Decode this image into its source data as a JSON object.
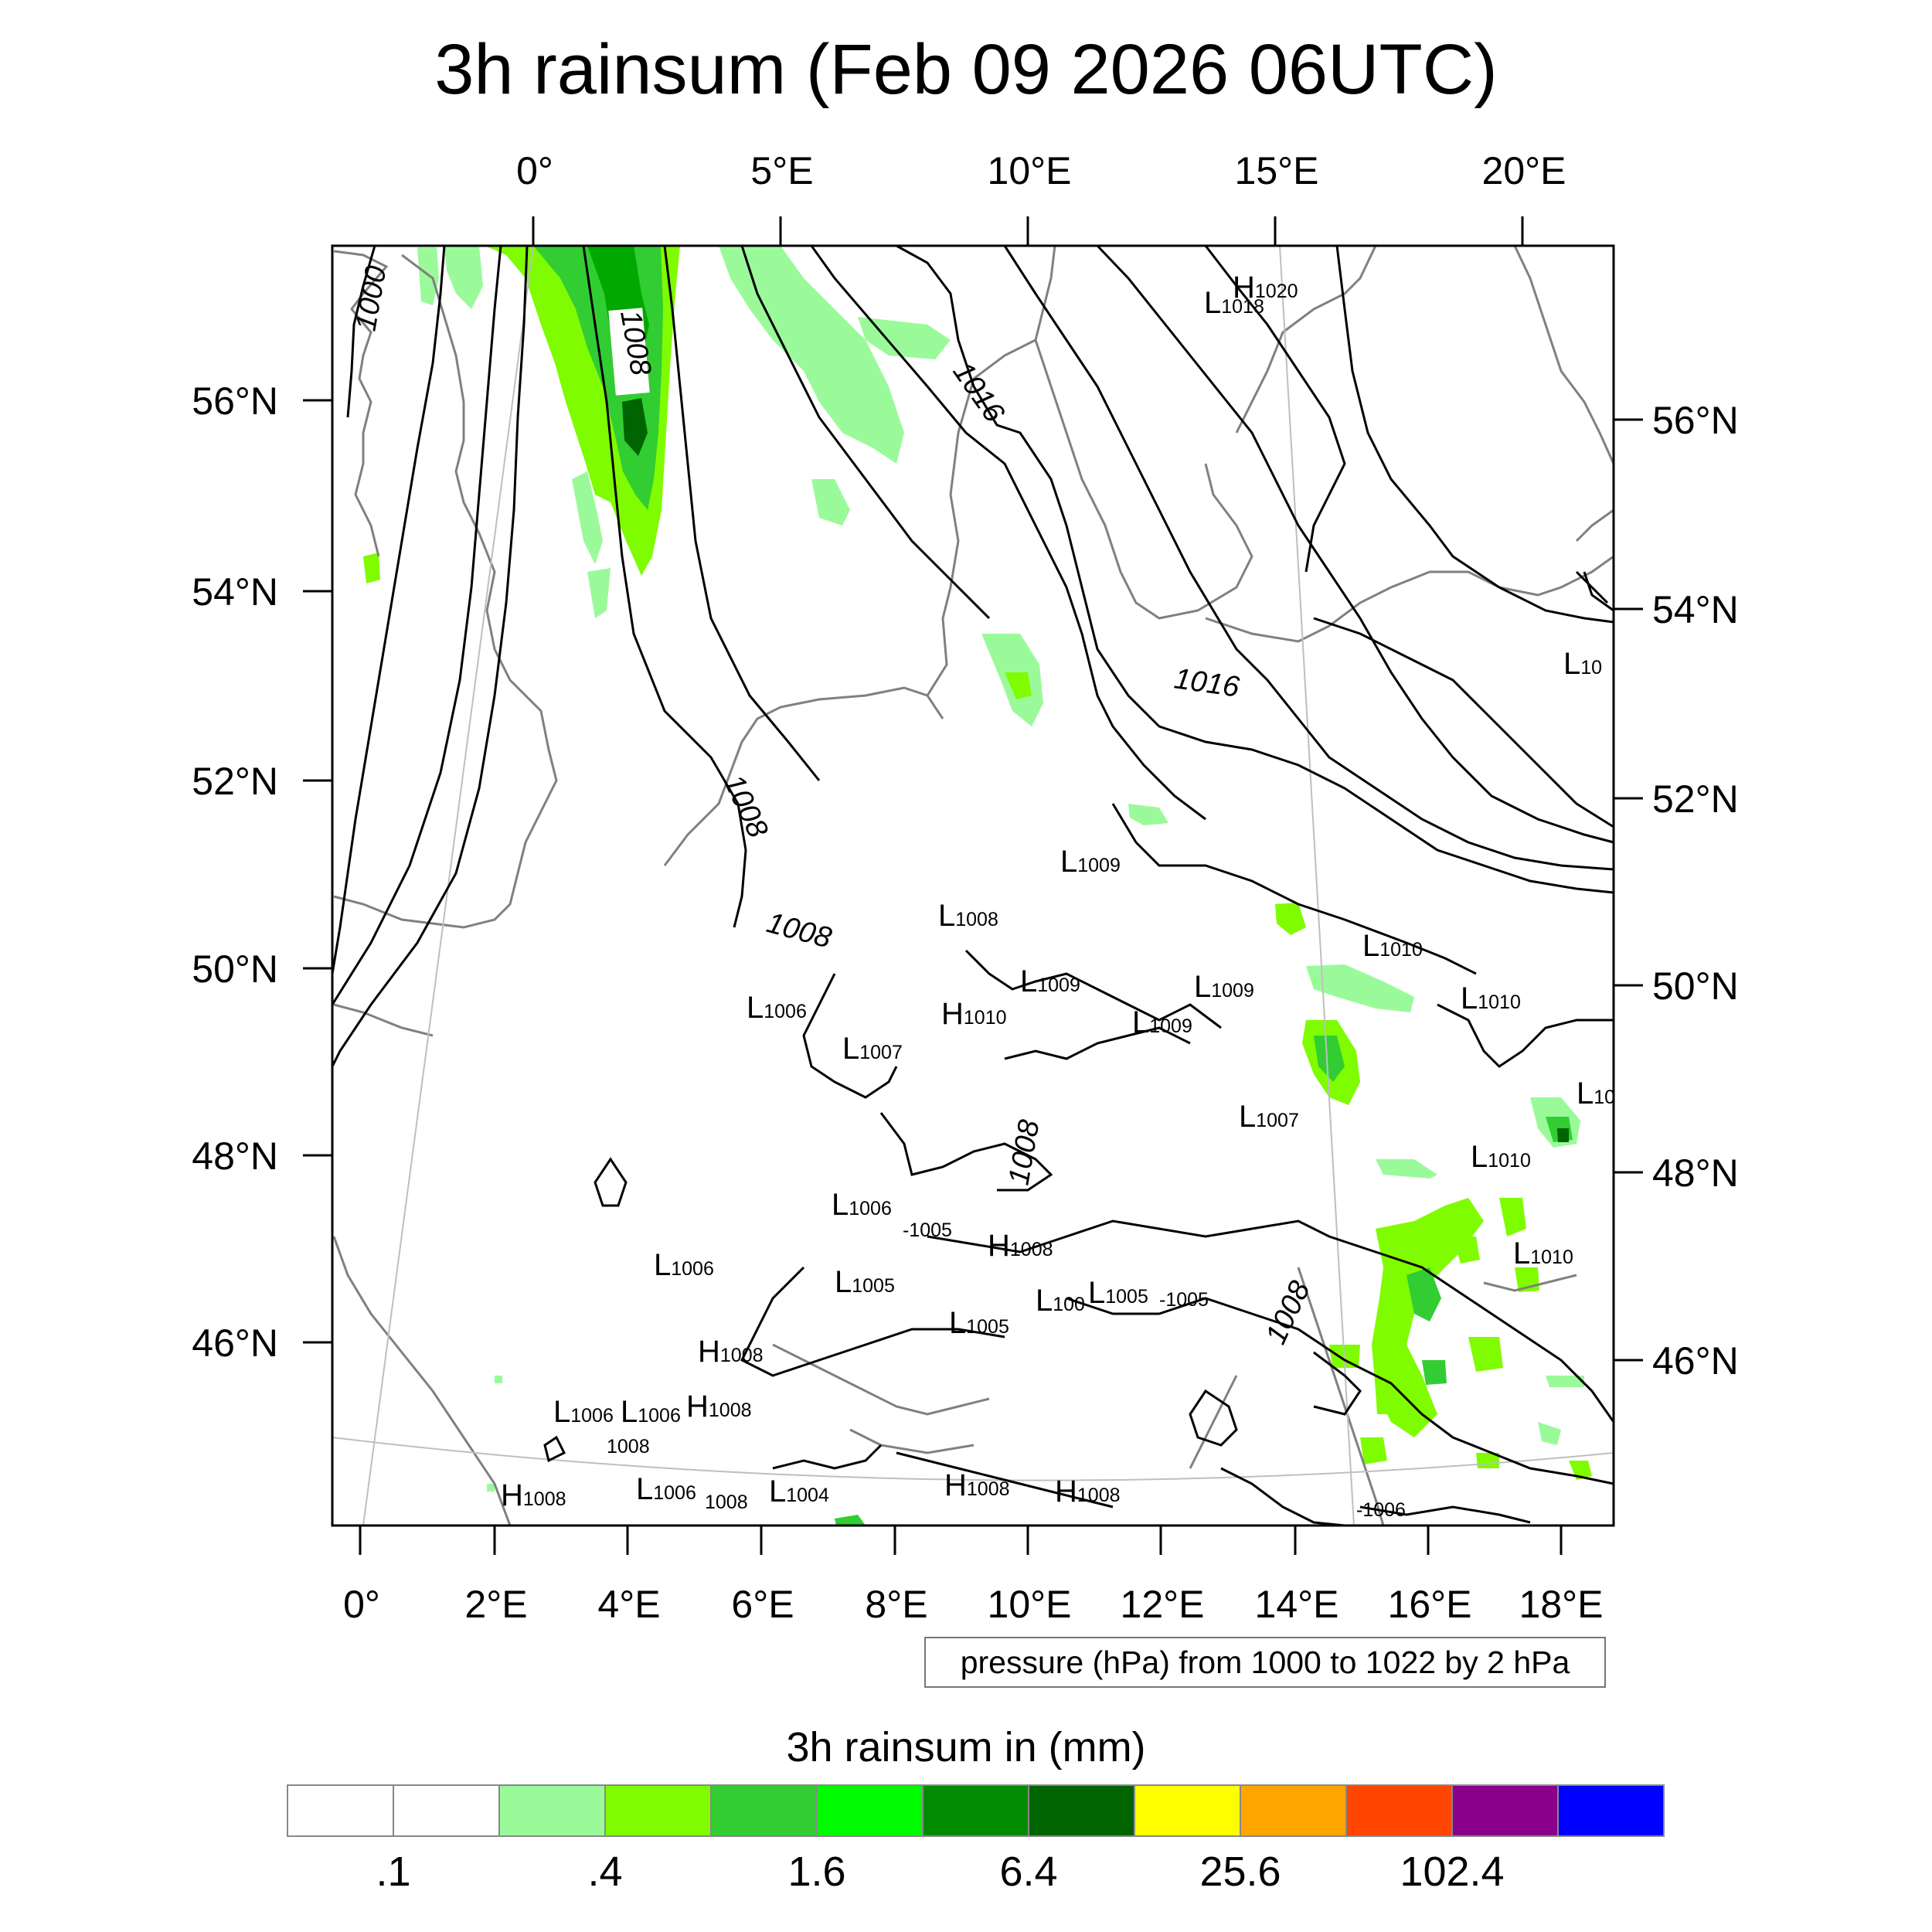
{
  "title": "3h rainsum (Feb 09 2026 06UTC)",
  "contour_info": "pressure (hPa) from 1000 to 1022 by 2 hPa",
  "colorbar": {
    "title": "3h rainsum in (mm)",
    "colors": [
      "#ffffff",
      "#ffffff",
      "#9afa9a",
      "#7ffc00",
      "#32cd32",
      "#00fa00",
      "#008b00",
      "#006400",
      "#ffff00",
      "#ffa500",
      "#ff4500",
      "#8b008b",
      "#0000ff"
    ],
    "tick_labels": [
      ".1",
      ".4",
      "1.6",
      "6.4",
      "25.6",
      "102.4"
    ]
  },
  "axes": {
    "top_lon": [
      "0°",
      "5°E",
      "10°E",
      "15°E",
      "20°E"
    ],
    "bottom_lon": [
      "0°",
      "2°E",
      "4°E",
      "6°E",
      "8°E",
      "10°E",
      "12°E",
      "14°E",
      "16°E",
      "18°E"
    ],
    "left_lat": [
      "56°N",
      "54°N",
      "52°N",
      "50°N",
      "48°N",
      "46°N"
    ],
    "right_lat": [
      "56°N",
      "54°N",
      "52°N",
      "50°N",
      "48°N",
      "46°N"
    ]
  },
  "isobar_labels": [
    "1000",
    "1008",
    "1016",
    "1008",
    "1008",
    "1016",
    "1008",
    "1008"
  ],
  "pressure_centers": [
    {
      "t": "L",
      "v": "1018"
    },
    {
      "t": "H",
      "v": "1020"
    },
    {
      "t": "L",
      "v": "1009"
    },
    {
      "t": "L",
      "v": "1008"
    },
    {
      "t": "L",
      "v": "1010"
    },
    {
      "t": "L",
      "v": "1009"
    },
    {
      "t": "L",
      "v": "1009"
    },
    {
      "t": "L",
      "v": "1010"
    },
    {
      "t": "L",
      "v": "1006"
    },
    {
      "t": "H",
      "v": "1010"
    },
    {
      "t": "L",
      "v": "1009"
    },
    {
      "t": "L",
      "v": "1007"
    },
    {
      "t": "L",
      "v": "1007"
    },
    {
      "t": "L",
      "v": "10"
    },
    {
      "t": "L",
      "v": "1010"
    },
    {
      "t": "L",
      "v": "1006"
    },
    {
      "t": "",
      "v": "1005"
    },
    {
      "t": "H",
      "v": "1008"
    },
    {
      "t": "L",
      "v": "1010"
    },
    {
      "t": "L",
      "v": "1006"
    },
    {
      "t": "L",
      "v": "1005"
    },
    {
      "t": "L",
      "v": "100"
    },
    {
      "t": "L",
      "v": "1005"
    },
    {
      "t": "",
      "v": "1005"
    },
    {
      "t": "L",
      "v": "1005"
    },
    {
      "t": "H",
      "v": "1008"
    },
    {
      "t": "L",
      "v": "1006"
    },
    {
      "t": "L",
      "v": "1006"
    },
    {
      "t": "H",
      "v": "1008"
    },
    {
      "t": "",
      "v": "1008"
    },
    {
      "t": "H",
      "v": "1008"
    },
    {
      "t": "L",
      "v": "1006"
    },
    {
      "t": "",
      "v": "1008"
    },
    {
      "t": "L",
      "v": "1004"
    },
    {
      "t": "H",
      "v": "1008"
    },
    {
      "t": "H",
      "v": "1008"
    },
    {
      "t": "",
      "v": "1006"
    },
    {
      "t": "L",
      "v": "10"
    }
  ]
}
